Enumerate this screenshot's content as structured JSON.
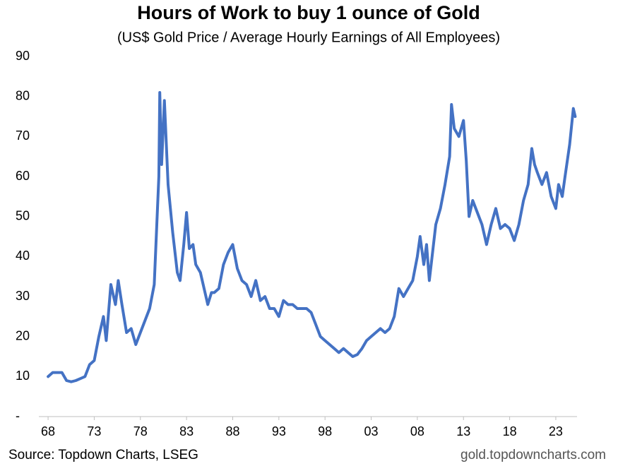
{
  "chart_data": {
    "type": "line",
    "title": "Hours of Work to buy 1 ounce of Gold",
    "subtitle": "(US$ Gold Price / Average Hourly Earnings of All Employees)",
    "source": "Source: Topdown Charts, LSEG",
    "watermark": "gold.topdowncharts.com",
    "xlim": [
      1967,
      2025.3
    ],
    "ylim": [
      0,
      90
    ],
    "xticks": [
      {
        "value": 1968,
        "label": "68"
      },
      {
        "value": 1973,
        "label": "73"
      },
      {
        "value": 1978,
        "label": "78"
      },
      {
        "value": 1983,
        "label": "83"
      },
      {
        "value": 1988,
        "label": "88"
      },
      {
        "value": 1993,
        "label": "93"
      },
      {
        "value": 1998,
        "label": "98"
      },
      {
        "value": 2003,
        "label": "03"
      },
      {
        "value": 2008,
        "label": "08"
      },
      {
        "value": 2013,
        "label": "13"
      },
      {
        "value": 2018,
        "label": "18"
      },
      {
        "value": 2023,
        "label": "23"
      }
    ],
    "yticks": [
      {
        "value": 0,
        "label": "-"
      },
      10,
      20,
      30,
      40,
      50,
      60,
      70,
      80,
      90
    ],
    "grid": false,
    "x": [
      1968,
      1968.5,
      1969,
      1969.5,
      1970,
      1970.5,
      1971,
      1971.5,
      1972,
      1972.5,
      1973,
      1973.5,
      1974,
      1974.3,
      1974.8,
      1975,
      1975.3,
      1975.6,
      1976,
      1976.5,
      1977,
      1977.5,
      1978,
      1978.5,
      1979,
      1979.5,
      1980,
      1980.1,
      1980.3,
      1980.6,
      1981,
      1981.5,
      1982,
      1982.3,
      1982.7,
      1983,
      1983.3,
      1983.7,
      1984,
      1984.5,
      1985,
      1985.3,
      1985.7,
      1986,
      1986.5,
      1987,
      1987.5,
      1988,
      1988.5,
      1989,
      1989.5,
      1990,
      1990.5,
      1991,
      1991.5,
      1992,
      1992.5,
      1993,
      1993.5,
      1994,
      1994.5,
      1995,
      1995.5,
      1996,
      1996.5,
      1997,
      1997.5,
      1998,
      1998.5,
      1999,
      1999.5,
      2000,
      2000.5,
      2001,
      2001.5,
      2002,
      2002.5,
      2003,
      2003.5,
      2004,
      2004.5,
      2005,
      2005.5,
      2006,
      2006.5,
      2007,
      2007.5,
      2008,
      2008.3,
      2008.7,
      2009,
      2009.3,
      2009.7,
      2010,
      2010.5,
      2011,
      2011.5,
      2011.7,
      2012,
      2012.5,
      2013,
      2013.3,
      2013.6,
      2014,
      2014.5,
      2015,
      2015.5,
      2016,
      2016.5,
      2017,
      2017.5,
      2018,
      2018.5,
      2019,
      2019.5,
      2020,
      2020.4,
      2020.7,
      2021,
      2021.5,
      2022,
      2022.5,
      2023,
      2023.3,
      2023.7,
      2024,
      2024.5,
      2024.9,
      2025.1
    ],
    "series": [
      {
        "name": "Hours of Work to buy 1 ounce of Gold",
        "color": "#4472c4",
        "values": [
          10,
          11,
          11,
          11,
          9,
          8.7,
          9,
          9.5,
          10,
          13,
          14,
          20,
          25,
          19,
          33,
          31,
          28,
          34,
          28,
          21,
          22,
          18,
          21,
          24,
          27,
          33,
          60,
          81,
          63,
          79,
          58,
          46,
          36,
          34,
          43,
          51,
          42,
          43,
          38,
          36,
          31,
          28,
          31,
          31,
          32,
          38,
          41,
          43,
          37,
          34,
          33,
          30,
          34,
          29,
          30,
          27,
          27,
          25,
          29,
          28,
          28,
          27,
          27,
          27,
          26,
          23,
          20,
          19,
          18,
          17,
          16,
          17,
          16,
          15,
          15.5,
          17,
          19,
          20,
          21,
          22,
          21,
          22,
          25,
          32,
          30,
          32,
          34,
          40,
          45,
          38,
          43,
          34,
          42,
          48,
          52,
          58,
          65,
          78,
          72,
          70,
          74,
          64,
          50,
          54,
          51,
          48,
          43,
          48,
          52,
          47,
          48,
          47,
          44,
          48,
          54,
          58,
          67,
          63,
          61,
          58,
          61,
          55,
          52,
          58,
          55,
          60,
          68,
          77,
          75
        ]
      }
    ]
  }
}
